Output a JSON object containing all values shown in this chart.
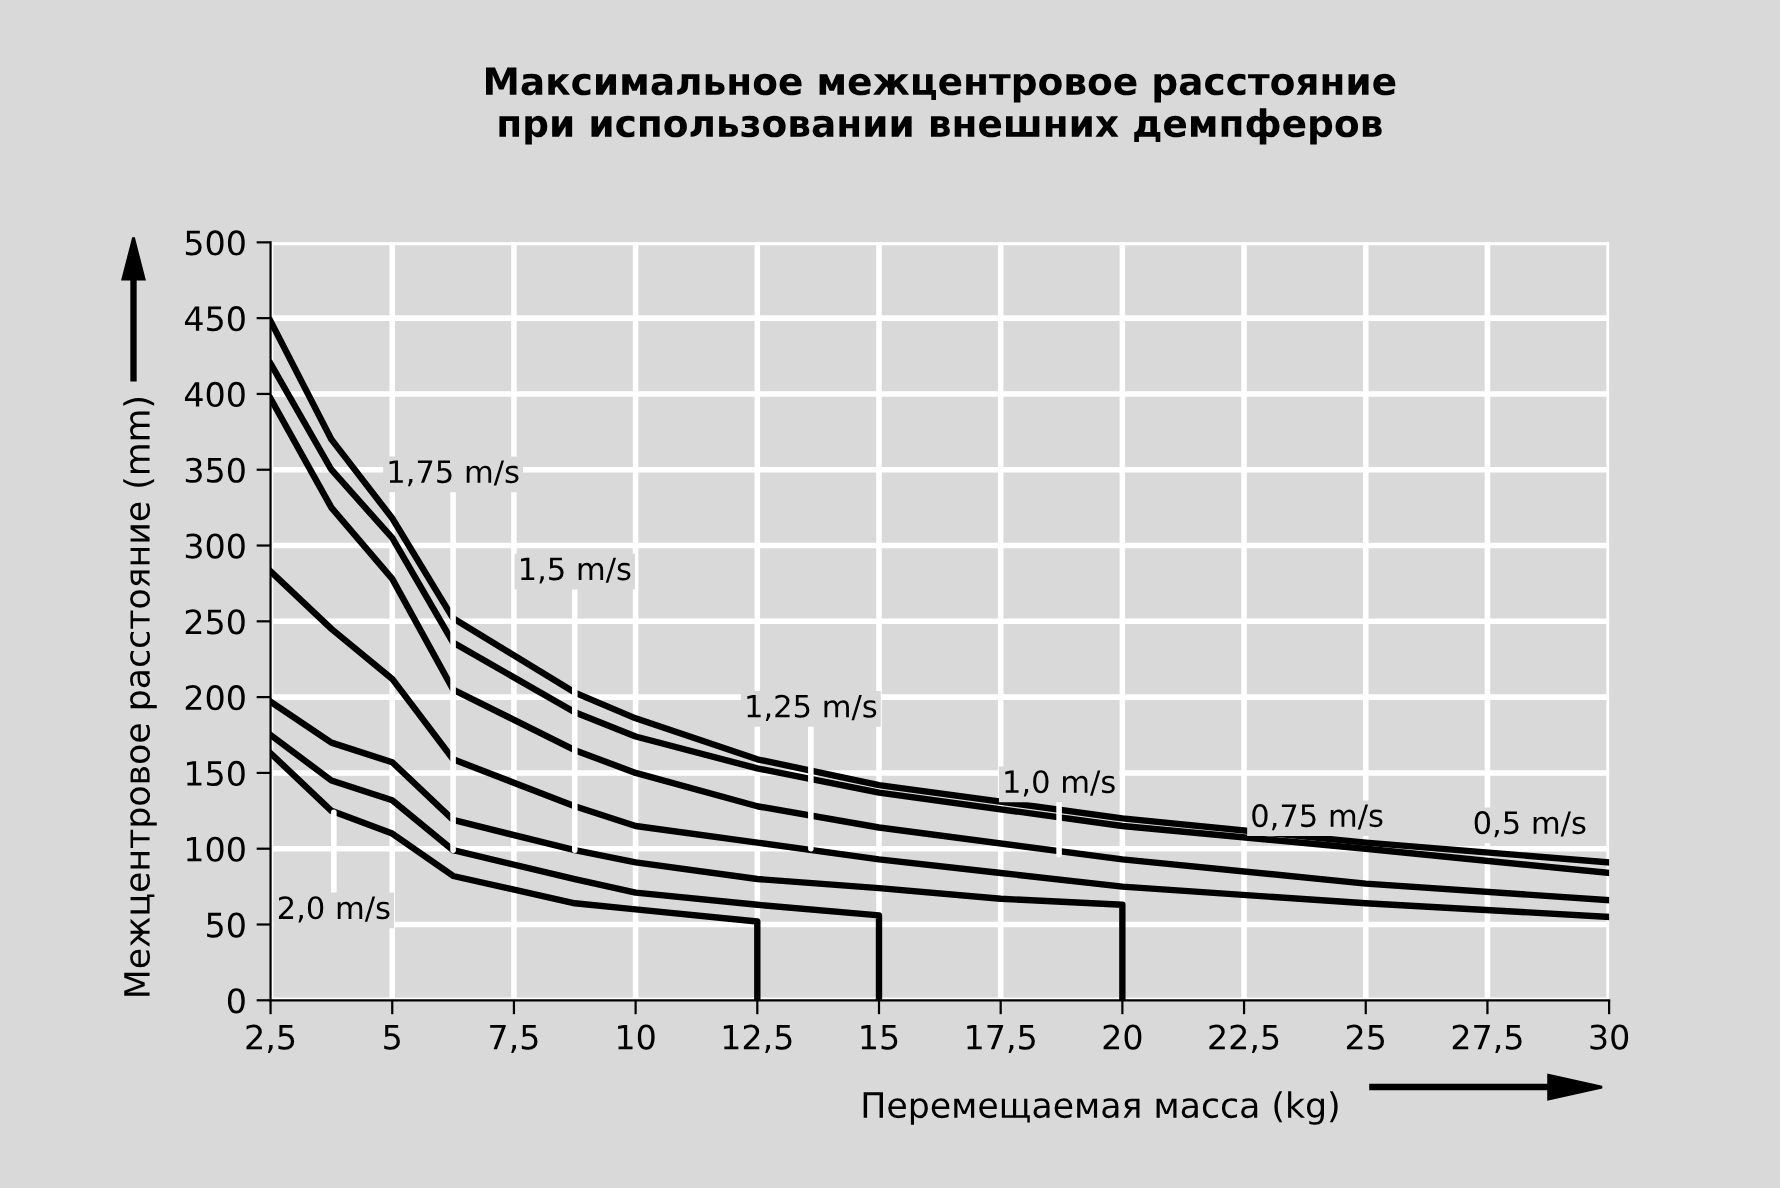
{
  "chart_data": {
    "type": "line",
    "title": "Максимальное межцентровое расстояние\nпри использовании внешних демпферов",
    "xlabel": "Перемещаемая масса (kg)",
    "ylabel": "Межцентровое расстояние (mm)",
    "xlim": [
      2.5,
      30
    ],
    "ylim": [
      0,
      500
    ],
    "xticks": [
      {
        "value": 2.5,
        "label": "2,5"
      },
      5,
      {
        "value": 7.5,
        "label": "7,5"
      },
      10,
      {
        "value": 12.5,
        "label": "12,5"
      },
      15,
      {
        "value": 17.5,
        "label": "17,5"
      },
      20,
      {
        "value": 22.5,
        "label": "22,5"
      },
      25,
      {
        "value": 27.5,
        "label": "27,5"
      },
      30
    ],
    "yticks": [
      0,
      50,
      100,
      150,
      200,
      250,
      300,
      350,
      400,
      450,
      500
    ],
    "grid": true,
    "legend": false,
    "marker": "none",
    "line_style": "solid",
    "series": [
      {
        "color": "#000000",
        "x": [
          2.5,
          3.75,
          5,
          6.25,
          8.75,
          10,
          12.5,
          15,
          20,
          25,
          30
        ],
        "values": [
          448,
          370,
          318,
          252,
          203,
          186,
          159,
          142,
          120,
          104,
          91
        ]
      },
      {
        "color": "#000000",
        "x": [
          2.5,
          3.75,
          5,
          6.25,
          8.75,
          10,
          12.5,
          15,
          20,
          25,
          30
        ],
        "values": [
          420,
          350,
          305,
          236,
          190,
          174,
          153,
          137,
          115,
          100,
          84
        ]
      },
      {
        "color": "#000000",
        "x": [
          2.5,
          3.75,
          5,
          6.25,
          8.75,
          10,
          12.5,
          15,
          20,
          25,
          30
        ],
        "values": [
          397,
          325,
          278,
          205,
          165,
          150,
          128,
          114,
          93,
          77,
          66
        ]
      },
      {
        "color": "#000000",
        "x": [
          2.5,
          3.75,
          5,
          6.25,
          8.75,
          10,
          12.5,
          15,
          17.5,
          20,
          25,
          30
        ],
        "values": [
          283,
          245,
          212,
          159,
          128,
          115,
          104,
          93,
          84,
          75,
          64,
          55
        ]
      },
      {
        "color": "#000000",
        "x": [
          2.5,
          3.75,
          5,
          6.25,
          8.75,
          10,
          12.5,
          15,
          17.5,
          20,
          20
        ],
        "values": [
          197,
          170,
          157,
          119,
          99,
          91,
          80,
          74,
          67,
          63,
          0
        ]
      },
      {
        "color": "#000000",
        "x": [
          2.5,
          3.75,
          5,
          6.25,
          8.75,
          10,
          12.5,
          15,
          15
        ],
        "values": [
          175,
          145,
          132,
          99,
          80,
          71,
          63,
          56,
          0
        ]
      },
      {
        "color": "#000000",
        "x": [
          2.5,
          3.75,
          5,
          6.25,
          8.75,
          10,
          12.5,
          12.5
        ],
        "values": [
          163,
          125,
          110,
          82,
          64,
          60,
          52,
          0
        ]
      }
    ],
    "annotations": [
      {
        "text": "0,5 m/s",
        "x": 30,
        "y": 91
      },
      {
        "text": "0,75 m/s",
        "x": 24,
        "y": 103
      },
      {
        "text": "1,0 m/s",
        "x": 18.7,
        "y": 96
      },
      {
        "text": "1,25 m/s",
        "x": 13.6,
        "y": 100
      },
      {
        "text": "1,5 m/s",
        "x": 8.75,
        "y": 99
      },
      {
        "text": "1,75 m/s",
        "x": 6.25,
        "y": 99
      },
      {
        "text": "2,0 m/s",
        "x": 3.8,
        "y": 124
      }
    ]
  }
}
